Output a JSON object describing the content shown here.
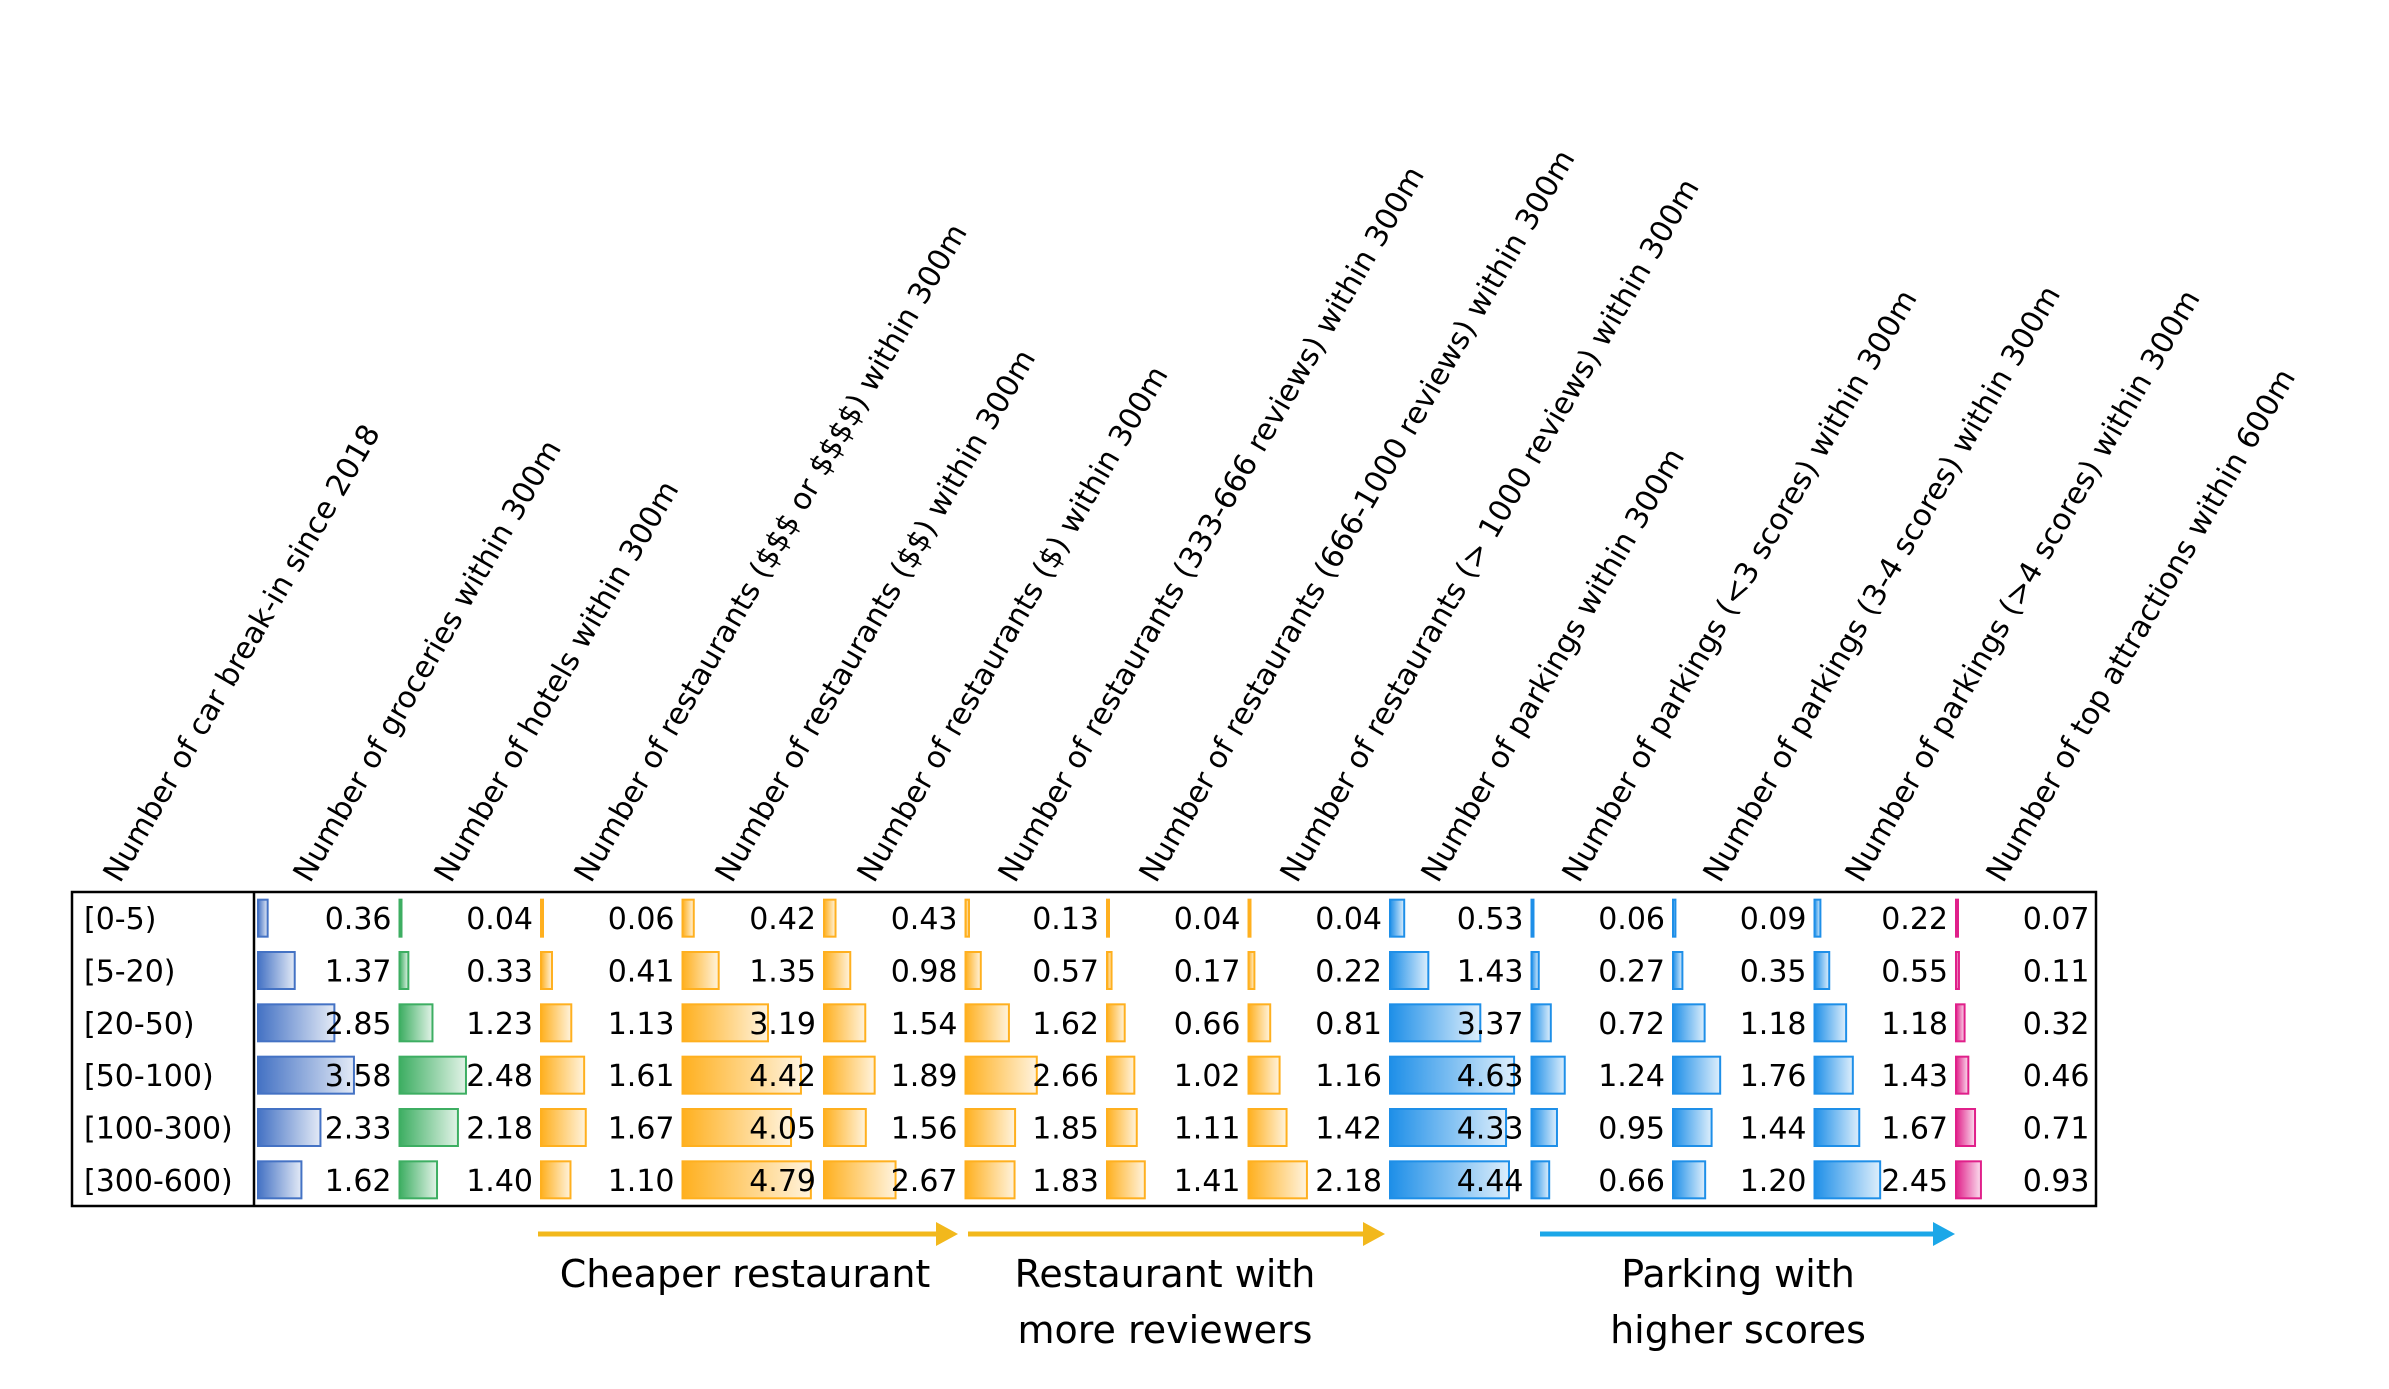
{
  "chart_data": {
    "type": "table",
    "columns": [
      {
        "label": "Number of car break-in since 2018",
        "color": "#4472C4"
      },
      {
        "label": "Number of groceries within 300m",
        "color": "#3DAE62"
      },
      {
        "label": "Number of hotels within 300m",
        "color": "#FFB01F"
      },
      {
        "label": "Number of restaurants ($$$ or $$$$) within 300m",
        "color": "#FFB01F"
      },
      {
        "label": "Number of restaurants ($$) within 300m",
        "color": "#FFB01F"
      },
      {
        "label": "Number of restaurants ($) within 300m",
        "color": "#FFB01F"
      },
      {
        "label": "Number of restaurants (333-666 reviews) within 300m",
        "color": "#FFB01F"
      },
      {
        "label": "Number of restaurants (666-1000 reviews) within 300m",
        "color": "#FFB01F"
      },
      {
        "label": "Number of restaurants (> 1000 reviews) within 300m",
        "color": "#1E8FE8"
      },
      {
        "label": "Number of parkings within 300m",
        "color": "#1E8FE8"
      },
      {
        "label": "Number of parkings (<3 scores) within 300m",
        "color": "#1E8FE8"
      },
      {
        "label": "Number of parkings (3-4 scores) within 300m",
        "color": "#1E8FE8"
      },
      {
        "label": "Number of parkings (>4 scores) within 300m",
        "color": "#E0208A"
      },
      {
        "label": "Number of top attractions within 600m",
        "color": "#E0208A"
      }
    ],
    "rows": [
      "[0-5)",
      "[5-20)",
      "[20-50)",
      "[50-100)",
      "[100-300)",
      "[300-600)"
    ],
    "values": [
      [
        "0.36",
        "0.04",
        "0.06",
        "0.42",
        "0.43",
        "0.13",
        "0.04",
        "0.04",
        "0.53",
        "0.06",
        "0.09",
        "0.22",
        "0.07"
      ],
      [
        "1.37",
        "0.33",
        "0.41",
        "1.35",
        "0.98",
        "0.57",
        "0.17",
        "0.22",
        "1.43",
        "0.27",
        "0.35",
        "0.55",
        "0.11"
      ],
      [
        "2.85",
        "1.23",
        "1.13",
        "3.19",
        "1.54",
        "1.62",
        "0.66",
        "0.81",
        "3.37",
        "0.72",
        "1.18",
        "1.18",
        "0.32"
      ],
      [
        "3.58",
        "2.48",
        "1.61",
        "4.42",
        "1.89",
        "2.66",
        "1.02",
        "1.16",
        "4.63",
        "1.24",
        "1.76",
        "1.43",
        "0.46"
      ],
      [
        "2.33",
        "2.18",
        "1.67",
        "4.05",
        "1.56",
        "1.85",
        "1.11",
        "1.42",
        "4.33",
        "0.95",
        "1.44",
        "1.67",
        "0.71"
      ],
      [
        "1.62",
        "1.40",
        "1.10",
        "4.79",
        "2.67",
        "1.83",
        "1.41",
        "2.18",
        "4.44",
        "0.66",
        "1.20",
        "2.45",
        "0.93"
      ]
    ],
    "cell_colors": [
      "#4472C4",
      "#3DAE62",
      "#FFB01F",
      "#FFB01F",
      "#FFB01F",
      "#FFB01F",
      "#FFB01F",
      "#FFB01F",
      "#1E8FE8",
      "#1E8FE8",
      "#1E8FE8",
      "#1E8FE8",
      "#E0208A"
    ],
    "bar_max": 5.0,
    "annotations": [
      {
        "label": "Cheaper restaurant",
        "color": "#F2B81C"
      },
      {
        "label": "Restaurant with\nmore reviewers",
        "color": "#F2B81C"
      },
      {
        "label": "Parking with\nhigher scores",
        "color": "#1BA7E8"
      }
    ]
  }
}
